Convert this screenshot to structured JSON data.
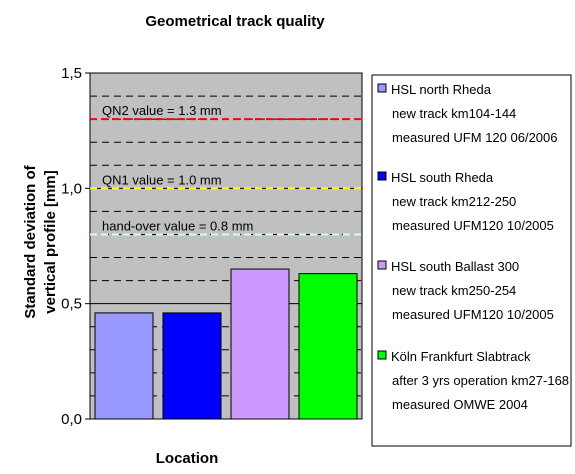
{
  "chart_data": {
    "type": "bar",
    "title": "Geometrical track quality",
    "xlabel": "Location",
    "ylabel_line1": "Standard deviation of",
    "ylabel_line2": "vertical profile [mm]",
    "ylim": [
      0,
      1.5
    ],
    "yticks": [
      0.0,
      0.5,
      1.0,
      1.5
    ],
    "ytick_labels": [
      "0,0",
      "0,5",
      "1,0",
      "1,5"
    ],
    "grid": true,
    "legend_position": "right",
    "plot_background": "#c0c0c0",
    "series": [
      {
        "value": 0.46,
        "color": "#9999ff",
        "legend_lines": [
          "HSL north Rheda",
          "new track km104-144",
          "measured UFM 120 06/2006"
        ]
      },
      {
        "value": 0.46,
        "color": "#0000ff",
        "legend_lines": [
          "HSL south Rheda",
          "new track km212-250",
          "measured UFM120 10/2005"
        ]
      },
      {
        "value": 0.65,
        "color": "#cc99ff",
        "legend_lines": [
          "HSL south Ballast 300",
          "new track km250-254",
          "measured UFM120 10/2005"
        ]
      },
      {
        "value": 0.63,
        "color": "#00ff00",
        "legend_lines": [
          "Köln Frankfurt Slabtrack",
          "after 3 yrs operation km27-168",
          "measured OMWE 2004"
        ]
      }
    ],
    "reference_lines": [
      {
        "label": "QN2 value = 1.3 mm",
        "value": 1.3,
        "color": "#ff0000"
      },
      {
        "label": "QN1 value = 1.0 mm",
        "value": 1.0,
        "color": "#ffff00"
      },
      {
        "label": "hand-over value = 0.8 mm",
        "value": 0.8,
        "color": "#ccffff"
      }
    ]
  }
}
